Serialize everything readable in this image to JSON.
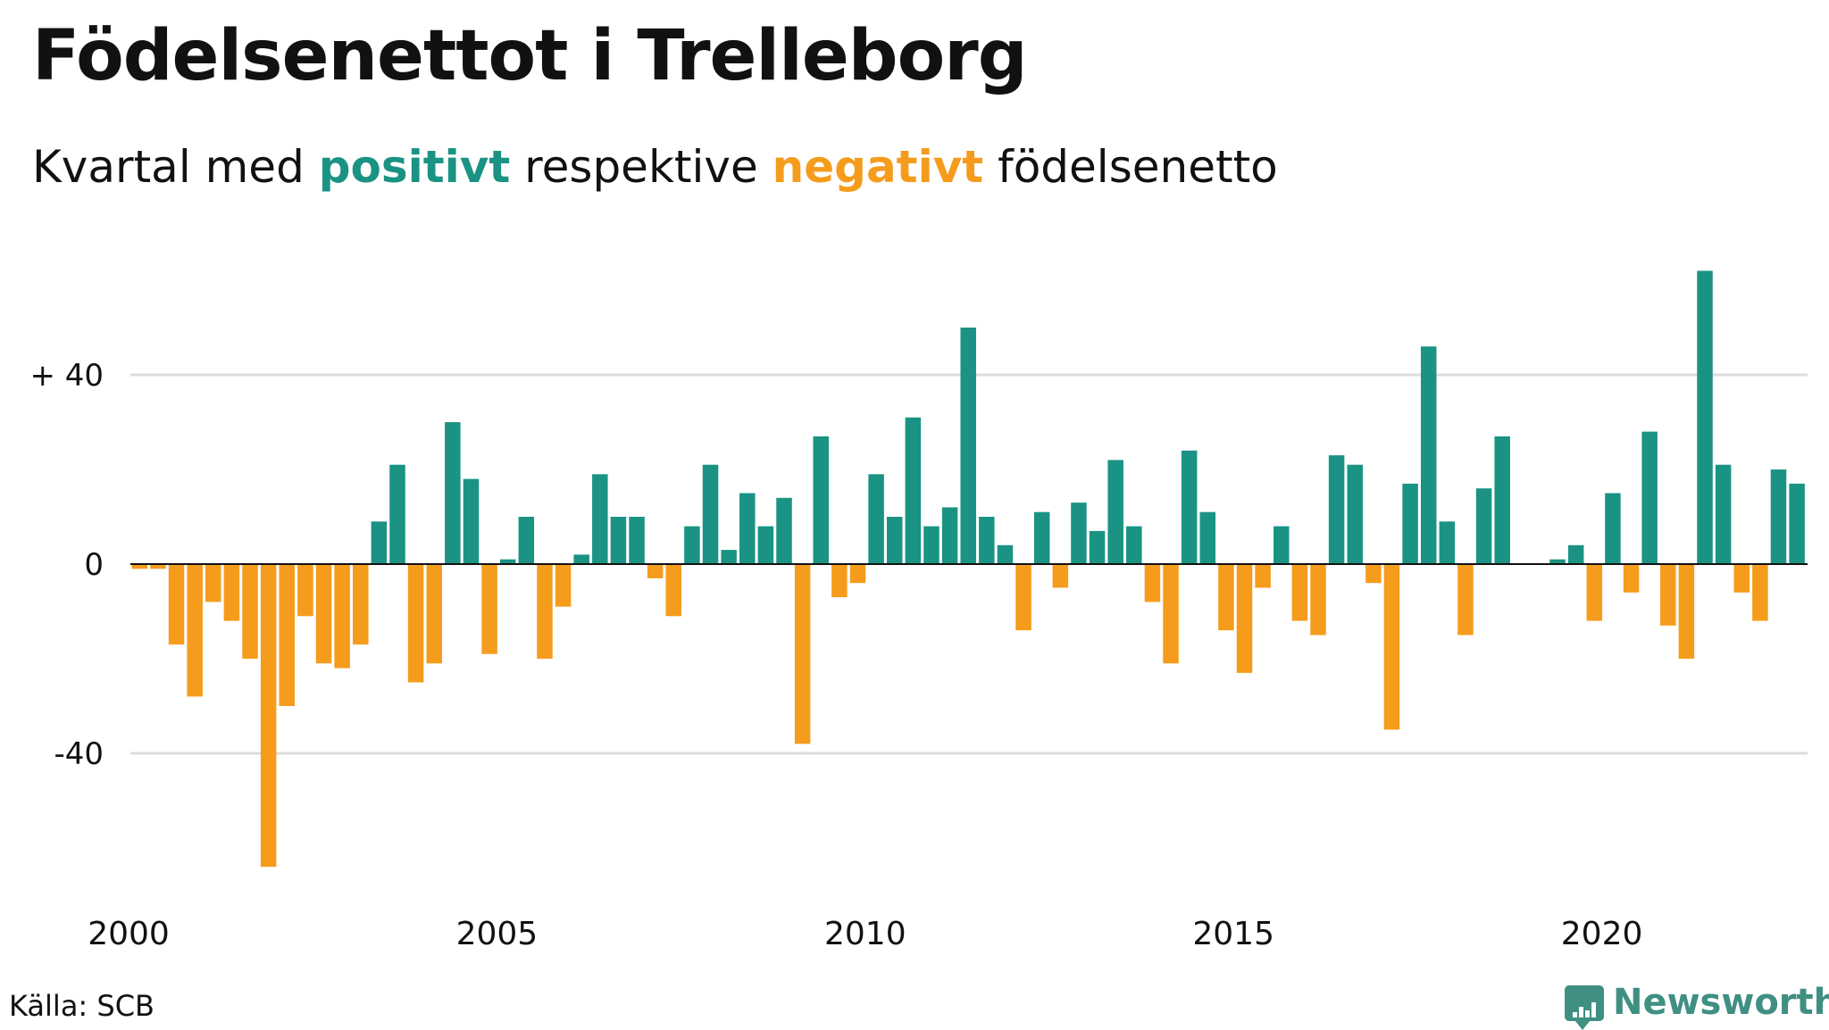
{
  "title": "Födelsenettot i Trelleborg",
  "subtitle": {
    "prefix": "Kvartal med ",
    "positive_word": "positivt",
    "middle": " respektive ",
    "negative_word": "negativt",
    "suffix": " födelsenetto"
  },
  "colors": {
    "positive": "#1a9384",
    "negative": "#f59c1d",
    "grid": "#dddddd",
    "axis": "#111111",
    "logo": "#3f8f83"
  },
  "source": "Källa: SCB",
  "brand": {
    "name": "Newsworthy",
    "icon": "newsworthy-logo-icon"
  },
  "chart_data": {
    "type": "bar",
    "title": "Födelsenettot i Trelleborg",
    "subtitle": "Kvartal med positivt respektive negativt födelsenetto",
    "xlabel": "",
    "ylabel": "",
    "x_start": 2000,
    "period": "quarter",
    "x_ticks": [
      2000,
      2005,
      2010,
      2015,
      2020
    ],
    "x_tick_labels": [
      "2000",
      "2005",
      "2010",
      "2015",
      "2020"
    ],
    "y_ticks": [
      40,
      0,
      -40
    ],
    "y_tick_labels": [
      "+ 40",
      "0",
      "-40"
    ],
    "ylim": [
      -68,
      66
    ],
    "grid": true,
    "legend": "none",
    "values": [
      -1,
      -1,
      -17,
      -28,
      -8,
      -12,
      -20,
      -64,
      -30,
      -11,
      -21,
      -22,
      -17,
      9,
      21,
      -25,
      -21,
      30,
      18,
      -19,
      1,
      10,
      -20,
      -9,
      2,
      19,
      10,
      10,
      -3,
      -11,
      8,
      21,
      3,
      15,
      8,
      14,
      -38,
      27,
      -7,
      -4,
      19,
      10,
      31,
      8,
      12,
      50,
      10,
      4,
      -14,
      11,
      -5,
      13,
      7,
      22,
      8,
      -8,
      -21,
      24,
      11,
      -14,
      -23,
      -5,
      8,
      -12,
      -15,
      23,
      21,
      -4,
      -35,
      17,
      46,
      9,
      -15,
      16,
      27,
      0,
      0,
      1,
      4,
      -12,
      15,
      -6,
      28,
      -13,
      -20,
      62,
      21,
      -6,
      -12,
      20,
      17
    ]
  }
}
